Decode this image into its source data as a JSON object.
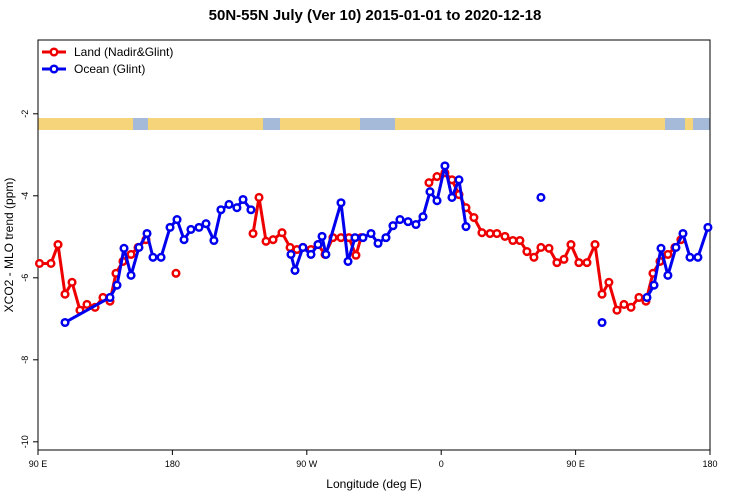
{
  "chart_data": {
    "type": "line",
    "title": "50N-55N July (Ver 10)   2015-01-01 to 2020-12-18",
    "x_label": "Longitude (deg E)",
    "y_label": "XCO2 - MLO trend (ppm)",
    "xlim": [
      90,
      540
    ],
    "ylim": [
      -10.2,
      -0.2
    ],
    "xticks": [
      {
        "value": 90,
        "label": "90 E"
      },
      {
        "value": 180,
        "label": "180"
      },
      {
        "value": 270,
        "label": "90 W"
      },
      {
        "value": 360,
        "label": "0"
      },
      {
        "value": 450,
        "label": "90 E"
      },
      {
        "value": 540,
        "label": "180"
      }
    ],
    "yticks": [
      -10,
      -8,
      -6,
      -4,
      -2
    ],
    "legend": "top-left",
    "series": [
      {
        "name": "Land (Nadir&Glint)",
        "color": "#ee0000",
        "x": [
          91,
          98.7,
          103.4,
          108.1,
          112.8,
          118.1,
          122.8,
          128.2,
          133.5,
          138.2,
          142.2,
          146.9,
          152.3,
          157,
          162.3,
          null,
          182.4,
          null,
          234,
          238,
          242.7,
          247.4,
          253.4,
          258.8,
          263.4,
          267.4,
          272.8,
          277.5,
          282.2,
          287.5,
          292.9,
          298.2,
          302.9,
          306.3,
          null,
          351.8,
          357.2,
          362.5,
          367.2,
          371.9,
          376.6,
          381.9,
          387.3,
          392.7,
          397.3,
          402.7,
          408,
          412.7,
          417.4,
          422.1,
          426.8,
          432.2,
          437.5,
          442.2,
          446.9,
          452.2,
          457.6,
          463,
          467.7,
          472.3,
          477.7,
          482.4,
          487.1,
          492.4,
          497.1,
          501.8,
          506.5,
          511.8,
          516.5,
          520.5
        ],
        "values": [
          -5.65,
          -5.65,
          -5.19,
          -6.4,
          -6.11,
          -6.79,
          -6.65,
          -6.72,
          -6.48,
          -6.57,
          -5.89,
          -5.6,
          -5.43,
          -5.26,
          -5.07,
          null,
          -5.89,
          null,
          -4.92,
          -4.04,
          -5.11,
          -5.07,
          -4.9,
          -5.26,
          -5.31,
          -5.26,
          -5.31,
          -5.19,
          -5.43,
          -5.02,
          -5.02,
          -5.02,
          -5.45,
          -5.02,
          null,
          -3.68,
          -3.53,
          -3.44,
          -3.61,
          -3.97,
          -4.29,
          -4.53,
          -4.9,
          -4.92,
          -4.92,
          -4.99,
          -5.09,
          -5.09,
          -5.36,
          -5.5,
          -5.26,
          -5.28,
          -5.63,
          -5.55,
          -5.19,
          -5.63,
          -5.63,
          -5.19,
          -6.4,
          -6.11,
          -6.79,
          -6.65,
          -6.72,
          -6.48,
          -6.57,
          -5.89,
          -5.6,
          -5.43,
          -5.26,
          -5.07
        ]
      },
      {
        "name": "Ocean (Glint)",
        "color": "#0000ee",
        "x": [
          108.1,
          138.2,
          142.9,
          147.6,
          152.3,
          157.6,
          163,
          167,
          172.4,
          178.4,
          183.1,
          187.8,
          192.4,
          197.8,
          202.5,
          207.8,
          212.5,
          217.9,
          223.2,
          227.3,
          232.6,
          null,
          259.4,
          262.1,
          267.4,
          272.8,
          277.5,
          280.2,
          282.8,
          292.9,
          297.6,
          302.3,
          307.6,
          313,
          317.7,
          323,
          327.7,
          332.4,
          337.8,
          343.1,
          347.8,
          352.5,
          357.2,
          362.5,
          367.2,
          371.9,
          376.6,
          null,
          426.8,
          null,
          467.7,
          null,
          497.8,
          502.5,
          507.2,
          511.8,
          517.2,
          521.9,
          526.6,
          531.9,
          538.6
        ],
        "values": [
          -7.09,
          -6.48,
          -6.18,
          -5.28,
          -5.94,
          -5.26,
          -4.92,
          -5.5,
          -5.5,
          -4.77,
          -4.58,
          -5.07,
          -4.82,
          -4.77,
          -4.68,
          -5.09,
          -4.34,
          -4.21,
          -4.29,
          -4.09,
          -4.34,
          null,
          -5.43,
          -5.82,
          -5.26,
          -5.43,
          -5.19,
          -4.99,
          -5.43,
          -4.17,
          -5.6,
          -5.02,
          -5.02,
          -4.92,
          -5.16,
          -5.02,
          -4.73,
          -4.58,
          -4.63,
          -4.7,
          -4.51,
          -3.9,
          -4.12,
          -3.27,
          -4.04,
          -3.61,
          -4.75,
          null,
          -4.04,
          null,
          -7.09,
          null,
          -6.48,
          -6.18,
          -5.28,
          -5.94,
          -5.26,
          -4.92,
          -5.5,
          -5.5,
          -4.77
        ]
      }
    ]
  }
}
